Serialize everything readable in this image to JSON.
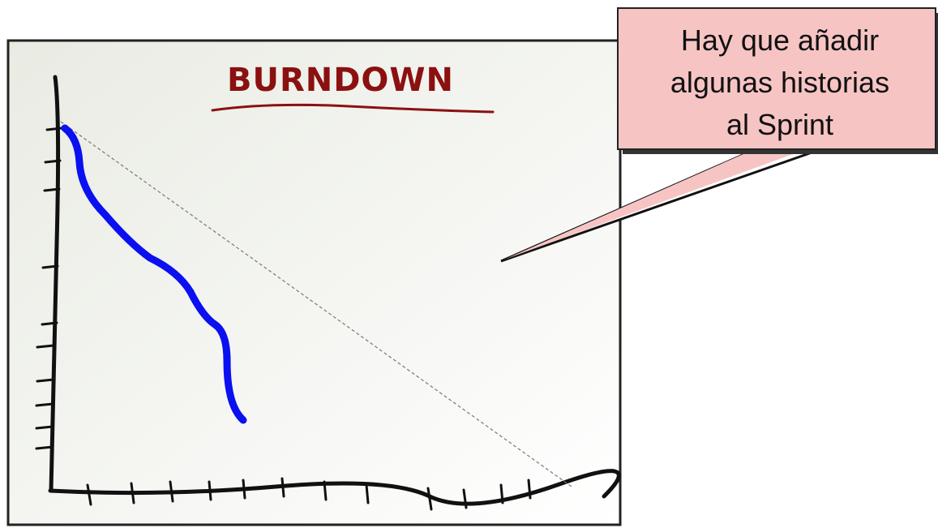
{
  "title": "BURNDOWN",
  "callout": {
    "lines": [
      "Hay que añadir",
      "algunas historias",
      "al Sprint"
    ]
  }
}
